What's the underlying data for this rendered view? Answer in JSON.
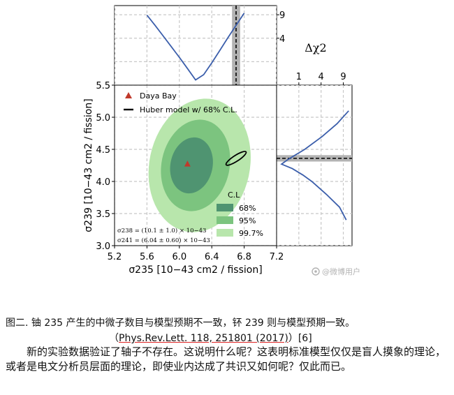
{
  "chart_data": {
    "type": "scatter",
    "main": {
      "xlabel": "σ235 [10−43 cm2 / fission]",
      "ylabel": "σ239 [10−43 cm2 / fission]",
      "xlim": [
        5.2,
        7.2
      ],
      "ylim": [
        3.0,
        5.5
      ],
      "xticks": [
        "5.2",
        "5.6",
        "6.0",
        "6.4",
        "6.8",
        "7.2"
      ],
      "yticks": [
        "3.0",
        "3.5",
        "4.0",
        "4.5",
        "5.0",
        "5.5"
      ],
      "grid": true,
      "point": {
        "name": "Daya Bay",
        "x": 6.1,
        "y": 4.27,
        "color": "#c0392b"
      },
      "contours": [
        {
          "level": "99.7%",
          "cx": 6.25,
          "cy": 4.25,
          "rx": 0.62,
          "ry": 1.05,
          "color": "#b8e6ac"
        },
        {
          "level": "95%",
          "cx": 6.2,
          "cy": 4.25,
          "rx": 0.42,
          "ry": 0.72,
          "color": "#7cc47f"
        },
        {
          "level": "68%",
          "cx": 6.15,
          "cy": 4.25,
          "rx": 0.26,
          "ry": 0.44,
          "color": "#4f9471"
        }
      ],
      "model": {
        "name": "Huber model w/ 68% C.L.",
        "x": 6.7,
        "y": 4.36
      },
      "legend_placement": "top-left",
      "cl_legend_title": "C.L",
      "cl_legend_placement": "bottom-right",
      "annotations": {
        "sigma238": "σ238 = (10.1 ± 1.0) × 10−43",
        "sigma241": "σ241 = (6.04 ± 0.60) × 10−43"
      }
    },
    "top_profile": {
      "yticks": [
        "1",
        "4",
        "9"
      ],
      "model_x": 6.7,
      "band": [
        6.65,
        6.75
      ],
      "min_x": 6.15,
      "curve_x": [
        5.6,
        5.7,
        5.8,
        5.9,
        6.0,
        6.1,
        6.2,
        6.3,
        6.4,
        6.5,
        6.6,
        6.7,
        6.8
      ],
      "curve_dchi2": [
        8.9,
        6.5,
        4.4,
        2.7,
        1.4,
        0.5,
        0.05,
        0.2,
        0.9,
        2.2,
        4.1,
        6.5,
        9.4
      ]
    },
    "right_profile": {
      "xlabel": "Δχ2",
      "xticks": [
        "1",
        "4",
        "9"
      ],
      "model_y": 4.36,
      "band": [
        4.31,
        4.41
      ],
      "curve_y": [
        3.4,
        3.6,
        3.8,
        4.0,
        4.1,
        4.2,
        4.27,
        4.35,
        4.5,
        4.7,
        4.9,
        5.1
      ],
      "curve_dchi2": [
        9.8,
        8.0,
        5.0,
        2.5,
        1.4,
        0.5,
        0.05,
        0.3,
        1.6,
        4.2,
        7.4,
        10.5
      ]
    }
  },
  "caption": {
    "line1": "图二. 铀 235 产生的中微子数目与模型预期不一致，钚 239 则与模型预期一致。",
    "open_paren": "（",
    "citation": "Phys.Rev.Lett. 118, 251801 (2017)",
    "close_paren": "）[6]"
  },
  "body_text": "新的实验数据验证了轴子不存在。这说明什么呢？这表明标准模型仅仅是盲人摸象的理论，或者是电文分析员层面的理论，即使业内达成了共识又如何呢？仅此而已。",
  "watermark": "@微博用户"
}
